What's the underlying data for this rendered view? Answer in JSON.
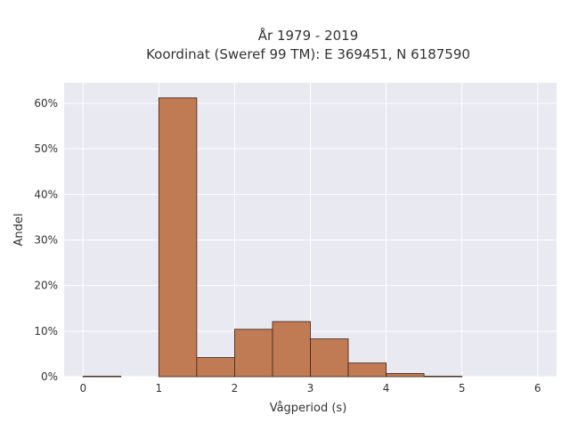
{
  "chart_data": {
    "type": "bar",
    "title_lines": [
      "År 1979 - 2019",
      "Koordinat (Sweref 99 TM): E 369451, N 6187590"
    ],
    "xlabel": "Vågperiod (s)",
    "ylabel": "Andel",
    "xlim": [
      -0.25,
      6.25
    ],
    "ylim": [
      0,
      0.645
    ],
    "x_ticks": [
      0,
      1,
      2,
      3,
      4,
      5,
      6
    ],
    "x_tick_labels": [
      "0",
      "1",
      "2",
      "3",
      "4",
      "5",
      "6"
    ],
    "y_ticks": [
      0,
      0.1,
      0.2,
      0.3,
      0.4,
      0.5,
      0.6
    ],
    "y_tick_labels": [
      "0%",
      "10%",
      "20%",
      "30%",
      "40%",
      "50%",
      "60%"
    ],
    "bins": [
      {
        "x0": 0.0,
        "x1": 0.5,
        "value": 0.001
      },
      {
        "x0": 1.0,
        "x1": 1.5,
        "value": 0.612
      },
      {
        "x0": 1.5,
        "x1": 2.0,
        "value": 0.042
      },
      {
        "x0": 2.0,
        "x1": 2.5,
        "value": 0.104
      },
      {
        "x0": 2.5,
        "x1": 3.0,
        "value": 0.121
      },
      {
        "x0": 3.0,
        "x1": 3.5,
        "value": 0.083
      },
      {
        "x0": 3.5,
        "x1": 4.0,
        "value": 0.03
      },
      {
        "x0": 4.0,
        "x1": 4.5,
        "value": 0.007
      },
      {
        "x0": 4.5,
        "x1": 5.0,
        "value": 0.001
      }
    ],
    "grid": true,
    "colors": {
      "bar_fill": "#c07a54",
      "bar_edge": "#3a2418",
      "plot_bg": "#e9e9f2",
      "grid": "#ffffff"
    }
  }
}
